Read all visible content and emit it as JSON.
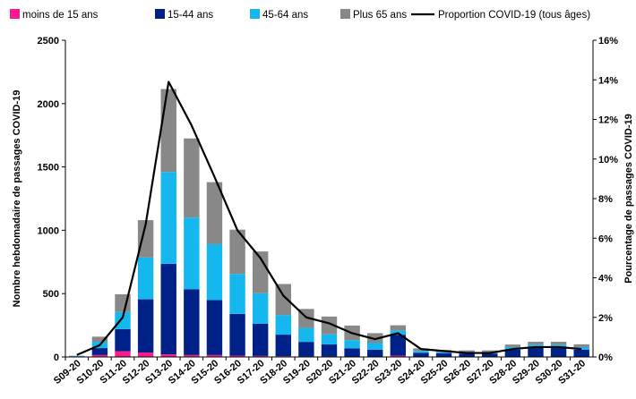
{
  "chart_data": {
    "type": "bar",
    "stacked": true,
    "categories": [
      "S09-20",
      "S10-20",
      "S11-20",
      "S12-20",
      "S13-20",
      "S14-20",
      "S15-20",
      "S16-20",
      "S17-20",
      "S18-20",
      "S19-20",
      "S20-20",
      "S21-20",
      "S22-20",
      "S23-20",
      "S24-20",
      "S25-20",
      "S26-20",
      "S27-20",
      "S28-20",
      "S29-20",
      "S30-20",
      "S31-20"
    ],
    "series": [
      {
        "name": "moins de 15 ans",
        "color": "#ff1a8c",
        "values": [
          2,
          15,
          45,
          35,
          20,
          15,
          15,
          10,
          8,
          6,
          4,
          4,
          3,
          3,
          10,
          2,
          2,
          2,
          2,
          3,
          3,
          3,
          3
        ]
      },
      {
        "name": "15-44 ans",
        "color": "#002288",
        "values": [
          3,
          55,
          175,
          420,
          715,
          520,
          435,
          330,
          255,
          170,
          115,
          95,
          65,
          55,
          165,
          30,
          28,
          25,
          25,
          55,
          70,
          70,
          55
        ]
      },
      {
        "name": "45-64 ans",
        "color": "#15b8ee",
        "values": [
          3,
          50,
          135,
          330,
          725,
          565,
          440,
          315,
          240,
          155,
          110,
          80,
          65,
          55,
          35,
          15,
          10,
          10,
          10,
          20,
          25,
          25,
          20
        ]
      },
      {
        "name": "Plus 65 ans",
        "color": "#888888",
        "values": [
          2,
          40,
          140,
          295,
          655,
          625,
          490,
          350,
          330,
          245,
          150,
          140,
          115,
          75,
          40,
          20,
          15,
          15,
          15,
          20,
          22,
          22,
          22
        ]
      }
    ],
    "line_series": {
      "name": "Proportion COVID-19 (tous âges)",
      "color": "#000000",
      "axis": "right",
      "values": [
        0.1,
        0.6,
        2.0,
        6.7,
        13.9,
        11.7,
        9.1,
        6.4,
        5.0,
        3.1,
        2.0,
        1.7,
        1.2,
        0.9,
        1.2,
        0.4,
        0.3,
        0.2,
        0.2,
        0.4,
        0.5,
        0.5,
        0.4
      ]
    },
    "y_left": {
      "label": "Nombre hebdomadaire de passages COVID-19",
      "ylim": [
        0,
        2500
      ],
      "ticks": [
        "0",
        "500",
        "1000",
        "1500",
        "2000",
        "2500"
      ]
    },
    "y_right": {
      "label": "Pourcentage de passages COVID-19",
      "ylim": [
        0,
        16
      ],
      "ticks": [
        "0%",
        "2%",
        "4%",
        "6%",
        "8%",
        "10%",
        "12%",
        "14%",
        "16%"
      ]
    },
    "legend_position": "top",
    "grid": false
  }
}
